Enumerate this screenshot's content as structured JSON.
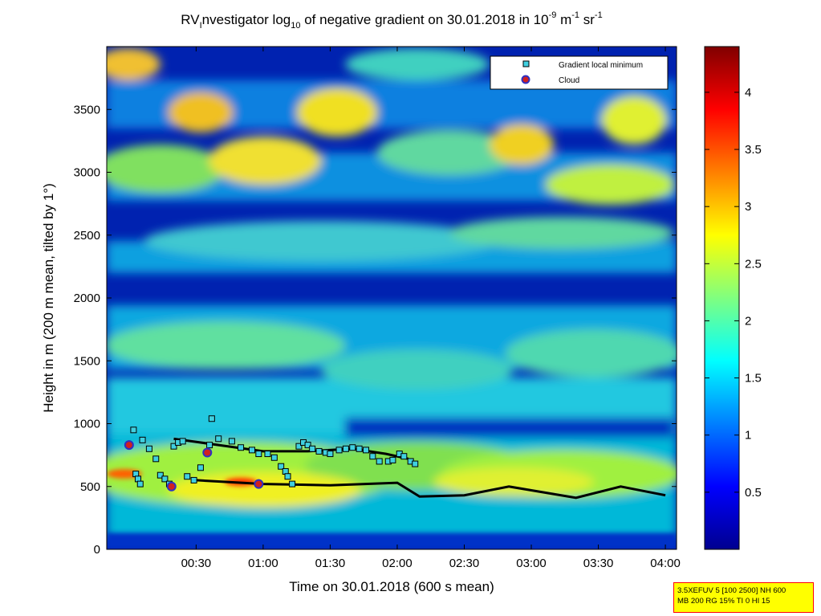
{
  "title": {
    "prefix": "RV",
    "sub": "I",
    "mid": "nvestigator log",
    "base": "10",
    "rest": " of negative gradient on 30.01.2018 in 10",
    "exp1": "-9",
    "unit1": " m",
    "exp2": "-1",
    "unit2": " sr",
    "exp3": "-1"
  },
  "info_box": {
    "line1": "3.5XEFUV 5 [100 2500] NH 600",
    "line2": "MB 200 RG 15% TI 0 HI 15"
  },
  "chart_data": {
    "type": "heatmap",
    "xlabel": "Time on 30.01.2018 (600 s mean)",
    "ylabel": "Height in m (200 m mean, tilted by 1°)",
    "xlim_min": [
      0,
      240
    ],
    "ylim": [
      0,
      4000
    ],
    "x_ticks": [
      {
        "min": 30,
        "label": "00:30"
      },
      {
        "min": 60,
        "label": "01:00"
      },
      {
        "min": 90,
        "label": "01:30"
      },
      {
        "min": 120,
        "label": "02:00"
      },
      {
        "min": 150,
        "label": "02:30"
      },
      {
        "min": 180,
        "label": "03:00"
      },
      {
        "min": 210,
        "label": "03:30"
      },
      {
        "min": 240,
        "label": "04:00"
      }
    ],
    "y_ticks": [
      {
        "value": 0,
        "label": "0"
      },
      {
        "value": 500,
        "label": "500"
      },
      {
        "value": 1000,
        "label": "1000"
      },
      {
        "value": 1500,
        "label": "1500"
      },
      {
        "value": 2000,
        "label": "2000"
      },
      {
        "value": 2500,
        "label": "2500"
      },
      {
        "value": 3000,
        "label": "3000"
      },
      {
        "value": 3500,
        "label": "3500"
      }
    ],
    "colorbar": {
      "min": 0,
      "max": 4.4,
      "ticks": [
        {
          "value": 0.5,
          "label": "0.5"
        },
        {
          "value": 1,
          "label": "1"
        },
        {
          "value": 1.5,
          "label": "1.5"
        },
        {
          "value": 2,
          "label": "2"
        },
        {
          "value": 2.5,
          "label": "2.5"
        },
        {
          "value": 3,
          "label": "3"
        },
        {
          "value": 3.5,
          "label": "3.5"
        },
        {
          "value": 4,
          "label": "4"
        }
      ]
    },
    "legend": {
      "placement": "top-right",
      "entries": [
        {
          "label": "Gradient local minimum",
          "marker": "square",
          "color": "#40d0e0"
        },
        {
          "label": "Cloud",
          "marker": "circle",
          "color": "#d02020",
          "edge": "#3030c0"
        }
      ]
    },
    "series": [
      {
        "name": "Gradient local minimum",
        "points": [
          [
            2,
            950
          ],
          [
            3,
            600
          ],
          [
            4,
            560
          ],
          [
            5,
            520
          ],
          [
            6,
            870
          ],
          [
            9,
            800
          ],
          [
            12,
            720
          ],
          [
            14,
            590
          ],
          [
            16,
            560
          ],
          [
            18,
            520
          ],
          [
            20,
            820
          ],
          [
            22,
            850
          ],
          [
            24,
            860
          ],
          [
            26,
            580
          ],
          [
            29,
            550
          ],
          [
            32,
            650
          ],
          [
            36,
            830
          ],
          [
            37,
            1040
          ],
          [
            40,
            880
          ],
          [
            46,
            860
          ],
          [
            50,
            810
          ],
          [
            55,
            790
          ],
          [
            58,
            760
          ],
          [
            62,
            760
          ],
          [
            65,
            730
          ],
          [
            68,
            660
          ],
          [
            70,
            620
          ],
          [
            71,
            580
          ],
          [
            73,
            520
          ],
          [
            76,
            820
          ],
          [
            78,
            850
          ],
          [
            80,
            830
          ],
          [
            82,
            800
          ],
          [
            85,
            780
          ],
          [
            88,
            770
          ],
          [
            90,
            760
          ],
          [
            94,
            790
          ],
          [
            97,
            800
          ],
          [
            100,
            810
          ],
          [
            103,
            800
          ],
          [
            106,
            790
          ],
          [
            109,
            740
          ],
          [
            112,
            700
          ],
          [
            116,
            700
          ],
          [
            118,
            710
          ],
          [
            121,
            760
          ],
          [
            123,
            740
          ],
          [
            126,
            700
          ],
          [
            128,
            680
          ]
        ]
      },
      {
        "name": "Cloud",
        "points": [
          [
            0,
            830
          ],
          [
            19,
            500
          ],
          [
            35,
            770
          ],
          [
            58,
            520
          ]
        ]
      }
    ],
    "layers": [
      {
        "name": "lower-boundary-line",
        "points": [
          [
            30,
            550
          ],
          [
            60,
            520
          ],
          [
            90,
            510
          ],
          [
            120,
            530
          ],
          [
            130,
            420
          ],
          [
            150,
            430
          ],
          [
            170,
            500
          ],
          [
            200,
            410
          ],
          [
            220,
            500
          ],
          [
            240,
            430
          ]
        ]
      },
      {
        "name": "upper-boundary-line",
        "points": [
          [
            20,
            880
          ],
          [
            40,
            830
          ],
          [
            60,
            780
          ],
          [
            80,
            780
          ],
          [
            100,
            800
          ],
          [
            115,
            760
          ],
          [
            125,
            720
          ]
        ]
      }
    ]
  }
}
